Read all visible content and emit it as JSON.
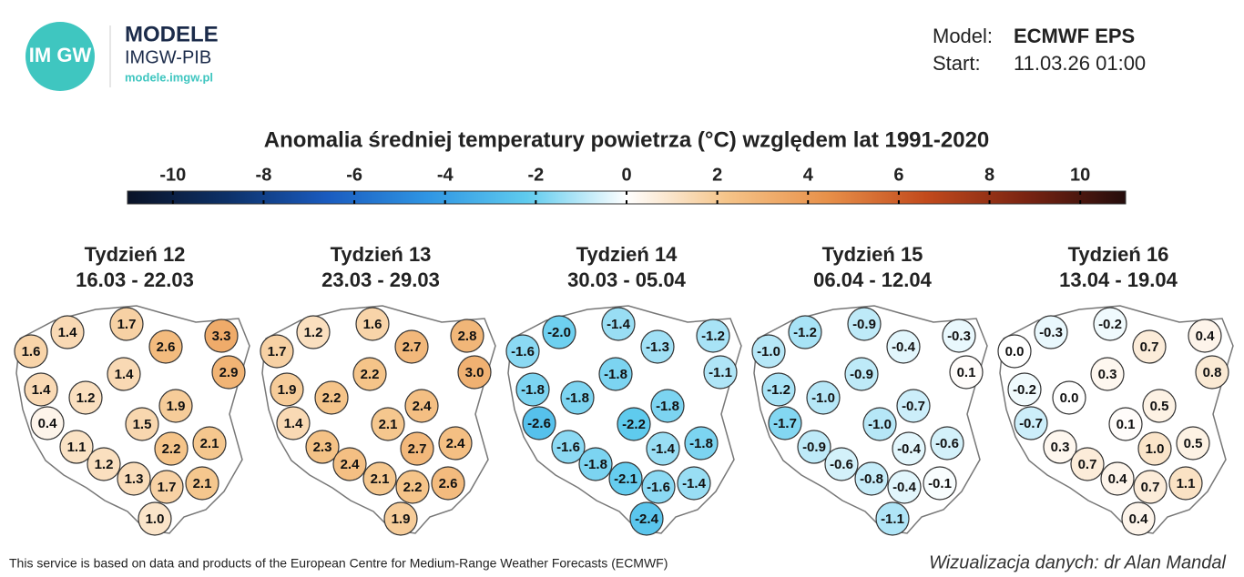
{
  "header": {
    "logo_text": "IM GW",
    "brand": "MODELE",
    "org": "IMGW-PIB",
    "url": "modele.imgw.pl",
    "model_label": "Model:",
    "model": "ECMWF EPS",
    "start_label": "Start:",
    "start": "11.03.26 01:00"
  },
  "title": "Anomalia średniej temperatury powietrza (°C) względem lat 1991-2020",
  "colorbar": {
    "lim": [
      -11,
      11
    ],
    "ticks": [
      -10,
      -8,
      -6,
      -4,
      -2,
      0,
      2,
      4,
      6,
      8,
      10
    ],
    "colors": [
      "#0a1226",
      "#0d3168",
      "#1a5bbf",
      "#2f95e3",
      "#5fcbee",
      "#ffffff",
      "#f5c489",
      "#e8914a",
      "#c24a1c",
      "#7a2412",
      "#240c0c"
    ]
  },
  "panels": [
    {
      "week": "Tydzień 12",
      "dates": "16.03 - 22.03",
      "values": [
        1.4,
        1.7,
        3.3,
        1.6,
        2.6,
        2.9,
        1.4,
        1.4,
        1.2,
        1.9,
        0.4,
        1.5,
        2.1,
        1.1,
        2.2,
        1.2,
        1.3,
        1.7,
        2.1,
        1.0
      ],
      "value_labels": [
        "1.4",
        "1.7",
        "3.3",
        "1.6",
        "2.6",
        "2.9",
        "1.4",
        "1.4",
        "1.2",
        "1.9",
        "0.4",
        "1.5",
        "2.1",
        "1.1",
        "2.2",
        "1.2",
        "1.3",
        "1.7",
        "2.1",
        "1.0"
      ]
    },
    {
      "week": "Tydzień 13",
      "dates": "23.03 - 29.03",
      "values": [
        1.2,
        1.6,
        2.8,
        1.7,
        2.7,
        3.0,
        2.2,
        1.9,
        2.2,
        2.4,
        1.4,
        2.1,
        2.4,
        2.3,
        2.7,
        2.4,
        2.1,
        2.2,
        2.6,
        1.9
      ],
      "value_labels": [
        "1.2",
        "1.6",
        "2.8",
        "1.7",
        "2.7",
        "3.0",
        "2.2",
        "1.9",
        "2.2",
        "2.4",
        "1.4",
        "2.1",
        "2.4",
        "2.3",
        "2.7",
        "2.4",
        "2.1",
        "2.2",
        "2.6",
        "1.9"
      ]
    },
    {
      "week": "Tydzień 14",
      "dates": "30.03 - 05.04",
      "values": [
        -2.0,
        -1.4,
        -1.2,
        -1.6,
        -1.3,
        -1.1,
        -1.8,
        -1.8,
        -1.8,
        -1.8,
        -2.6,
        -2.2,
        -1.8,
        -1.6,
        -1.4,
        -1.8,
        -2.1,
        -1.6,
        -1.4,
        -2.4
      ],
      "value_labels": [
        "-2.0",
        "-1.4",
        "-1.2",
        "-1.6",
        "-1.3",
        "-1.1",
        "-1.8",
        "-1.8",
        "-1.8",
        "-1.8",
        "-2.6",
        "-2.2",
        "-1.8",
        "-1.6",
        "-1.4",
        "-1.8",
        "-2.1",
        "-1.6",
        "-1.4",
        "-2.4"
      ]
    },
    {
      "week": "Tydzień 15",
      "dates": "06.04 - 12.04",
      "values": [
        -1.2,
        -0.9,
        -0.3,
        -1.0,
        -0.4,
        0.1,
        -0.9,
        -1.2,
        -1.0,
        -0.7,
        -1.7,
        -1.0,
        -0.6,
        -0.9,
        -0.4,
        -0.6,
        -0.8,
        -0.4,
        -0.1,
        -1.1
      ],
      "value_labels": [
        "-1.2",
        "-0.9",
        "-0.3",
        "-1.0",
        "-0.4",
        "0.1",
        "-0.9",
        "-1.2",
        "-1.0",
        "-0.7",
        "-1.7",
        "-1.0",
        "-0.6",
        "-0.9",
        "-0.4",
        "-0.6",
        "-0.8",
        "-0.4",
        "-0.1",
        "-1.1"
      ]
    },
    {
      "week": "Tydzień 16",
      "dates": "13.04 - 19.04",
      "values": [
        -0.3,
        -0.2,
        0.4,
        0.0,
        0.7,
        0.8,
        0.3,
        -0.2,
        0.0,
        0.5,
        -0.7,
        0.1,
        0.5,
        0.3,
        1.0,
        0.7,
        0.4,
        0.7,
        1.1,
        0.4
      ],
      "value_labels": [
        "-0.3",
        "-0.2",
        "0.4",
        "0.0",
        "0.7",
        "0.8",
        "0.3",
        "-0.2",
        "0.0",
        "0.5",
        "-0.7",
        "0.1",
        "0.5",
        "0.3",
        "1.0",
        "0.7",
        "0.4",
        "0.7",
        "1.1",
        "0.4"
      ]
    }
  ],
  "footer": {
    "source": "This service is based on data and products of the European Centre for Medium-Range Weather Forecasts (ECMWF)",
    "credit": "Wizualizacja danych: dr Alan Mandal"
  }
}
